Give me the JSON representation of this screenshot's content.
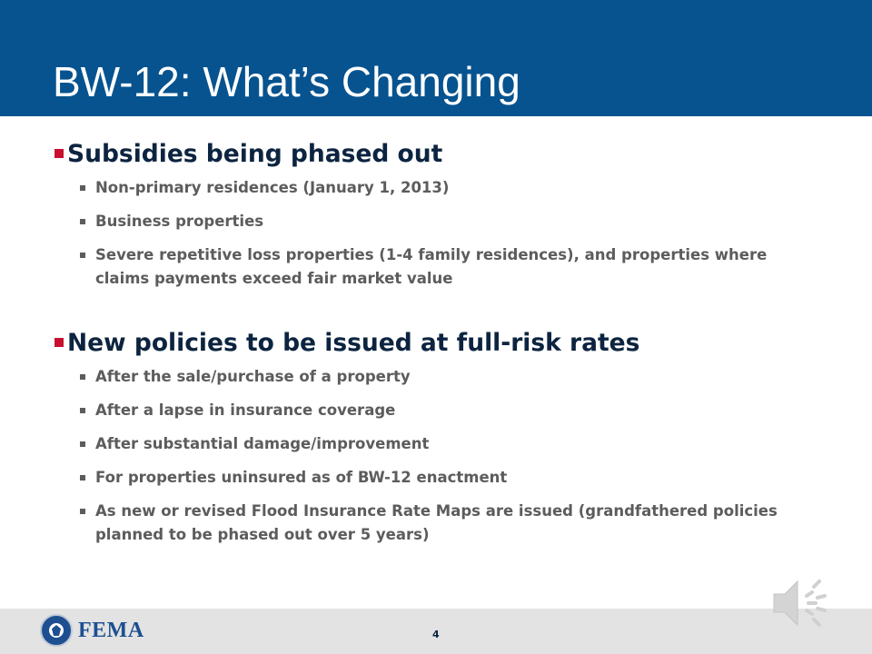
{
  "slide": {
    "title": "BW-12:  What’s Changing",
    "page_number": "4"
  },
  "sections": [
    {
      "heading": "Subsidies being phased out",
      "items": [
        "Non-primary residences (January 1, 2013)",
        "Business properties",
        "Severe repetitive loss properties (1-4 family residences), and properties where claims payments exceed fair market value"
      ]
    },
    {
      "heading": "New policies to be issued at full-risk rates",
      "items": [
        "After the sale/purchase of a property",
        "After a lapse in insurance coverage",
        "After substantial damage/improvement",
        "For properties uninsured as of BW-12 enactment",
        "As new or revised Flood Insurance Rate Maps are issued (grandfathered policies planned to be phased out over 5 years)"
      ]
    }
  ],
  "footer": {
    "logo_text": "FEMA",
    "logo_icon": "dhs-seal-icon",
    "audio_icon": "speaker-icon"
  },
  "colors": {
    "title_bar": "#06538f",
    "heading_text": "#0c2440",
    "heading_bullet": "#c8102e",
    "body_text": "#5c5c5c",
    "footer_bar": "#e3e3e3"
  }
}
